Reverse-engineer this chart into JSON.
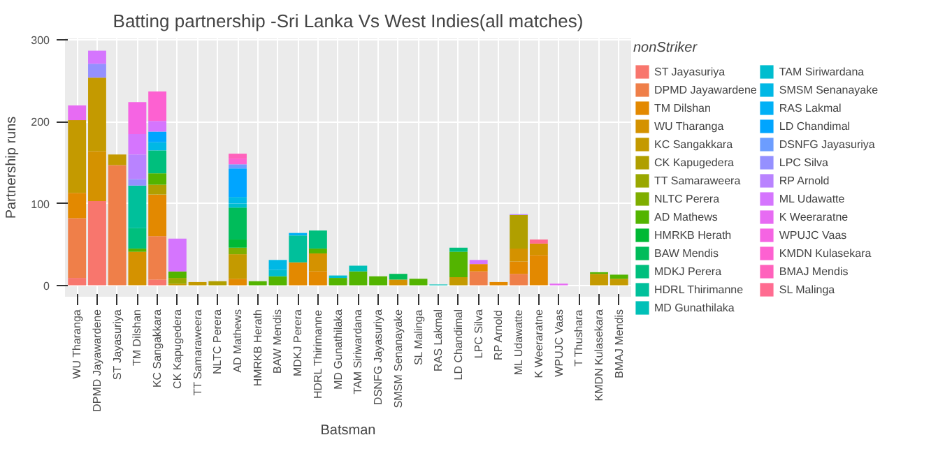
{
  "chart_data": {
    "type": "bar",
    "stacked": true,
    "title": "Batting partnership -Sri Lanka Vs West Indies(all matches)",
    "xlabel": "Batsman",
    "ylabel": "Partnership runs",
    "legend_title": "nonStriker",
    "legend": "right",
    "grid": true,
    "ylim": [
      -14,
      302
    ],
    "yticks": [
      0,
      100,
      200,
      300
    ],
    "categories": [
      "WU Tharanga",
      "DPMD Jayawardene",
      "ST Jayasuriya",
      "TM Dilshan",
      "KC Sangakkara",
      "CK Kapugedera",
      "TT Samaraweera",
      "NLTC Perera",
      "AD Mathews",
      "HMRKB Herath",
      "BAW Mendis",
      "MDKJ Perera",
      "HDRL Thirimanne",
      "MD Gunathilaka",
      "TAM Siriwardana",
      "DSNFG Jayasuriya",
      "SMSM Senanayake",
      "SL Malinga",
      "RAS Lakmal",
      "LD Chandimal",
      "LPC Silva",
      "RP Arnold",
      "ML Udawatte",
      "K Weeraratne",
      "WPUJC Vaas",
      "T Thushara",
      "KMDN Kulasekara",
      "BMAJ Mendis"
    ],
    "series": [
      {
        "name": "ST Jayasuriya",
        "color": "#f8766d",
        "values": [
          9,
          103,
          null,
          null,
          7,
          null,
          null,
          null,
          null,
          null,
          null,
          null,
          null,
          null,
          null,
          null,
          null,
          null,
          null,
          null,
          null,
          null,
          null,
          null,
          null,
          null,
          null,
          null
        ]
      },
      {
        "name": "DPMD Jayawardene",
        "color": "#ef7f49",
        "values": [
          73,
          null,
          147,
          null,
          53,
          null,
          null,
          null,
          null,
          null,
          null,
          null,
          null,
          null,
          null,
          null,
          null,
          null,
          null,
          null,
          17,
          null,
          14,
          null,
          null,
          null,
          null,
          null
        ]
      },
      {
        "name": "TM Dilshan",
        "color": "#e38900",
        "values": [
          31,
          null,
          null,
          null,
          51,
          null,
          null,
          null,
          8,
          null,
          null,
          28,
          17,
          null,
          null,
          null,
          null,
          null,
          null,
          null,
          9,
          4,
          15,
          37,
          null,
          null,
          null,
          null
        ]
      },
      {
        "name": "WU Tharanga",
        "color": "#d49200",
        "values": [
          null,
          61,
          null,
          41,
          null,
          null,
          null,
          null,
          null,
          null,
          null,
          null,
          22,
          null,
          null,
          null,
          7,
          null,
          null,
          null,
          null,
          null,
          16,
          14,
          null,
          null,
          null,
          null
        ]
      },
      {
        "name": "KC Sangakkara",
        "color": "#c49a00",
        "values": [
          89,
          90,
          13,
          null,
          null,
          2,
          4,
          null,
          30,
          null,
          null,
          null,
          null,
          null,
          null,
          null,
          null,
          null,
          null,
          10,
          null,
          null,
          null,
          null,
          null,
          null,
          14,
          8
        ]
      },
      {
        "name": "CK Kapugedera",
        "color": "#b09f00",
        "values": [
          null,
          null,
          null,
          null,
          12,
          null,
          null,
          5,
          null,
          null,
          null,
          null,
          null,
          null,
          null,
          null,
          null,
          null,
          null,
          null,
          null,
          null,
          41,
          null,
          null,
          null,
          null,
          null
        ]
      },
      {
        "name": "TT Samaraweera",
        "color": "#9aa800",
        "values": [
          null,
          null,
          null,
          null,
          null,
          7,
          null,
          null,
          null,
          null,
          null,
          null,
          null,
          null,
          null,
          null,
          null,
          null,
          null,
          null,
          null,
          null,
          null,
          null,
          null,
          null,
          null,
          null
        ]
      },
      {
        "name": "NLTC Perera",
        "color": "#7fae00",
        "values": [
          null,
          null,
          null,
          null,
          null,
          null,
          null,
          null,
          8,
          null,
          null,
          null,
          null,
          null,
          null,
          null,
          null,
          null,
          null,
          null,
          null,
          null,
          null,
          null,
          null,
          null,
          null,
          null
        ]
      },
      {
        "name": "AD Mathews",
        "color": "#53b400",
        "values": [
          null,
          null,
          null,
          4,
          14,
          8,
          null,
          null,
          null,
          5,
          11,
          null,
          6,
          9,
          17,
          11,
          null,
          8,
          null,
          31,
          null,
          null,
          null,
          null,
          null,
          null,
          2,
          5
        ]
      },
      {
        "name": "HMRKB Herath",
        "color": "#00b935",
        "values": [
          null,
          null,
          null,
          null,
          null,
          null,
          null,
          null,
          10,
          null,
          null,
          null,
          null,
          null,
          null,
          null,
          null,
          null,
          null,
          null,
          null,
          null,
          null,
          null,
          null,
          null,
          null,
          null
        ]
      },
      {
        "name": "BAW Mendis",
        "color": "#00bc5a",
        "values": [
          null,
          null,
          null,
          null,
          null,
          null,
          null,
          null,
          39,
          null,
          null,
          null,
          null,
          null,
          null,
          null,
          7,
          null,
          null,
          null,
          null,
          null,
          null,
          null,
          null,
          null,
          null,
          null
        ]
      },
      {
        "name": "MDKJ Perera",
        "color": "#00bf7d",
        "values": [
          null,
          null,
          null,
          25,
          28,
          null,
          null,
          null,
          null,
          null,
          null,
          null,
          22,
          null,
          null,
          null,
          null,
          null,
          null,
          5,
          null,
          null,
          null,
          null,
          null,
          null,
          null,
          null
        ]
      },
      {
        "name": "HDRL Thirimanne",
        "color": "#00c09b",
        "values": [
          null,
          null,
          null,
          52,
          null,
          null,
          null,
          null,
          null,
          null,
          null,
          33,
          null,
          null,
          null,
          null,
          null,
          null,
          null,
          null,
          null,
          null,
          null,
          null,
          null,
          null,
          null,
          null
        ]
      },
      {
        "name": "MD Gunathilaka",
        "color": "#00c0b7",
        "values": [
          null,
          null,
          null,
          null,
          null,
          null,
          null,
          null,
          null,
          null,
          null,
          null,
          null,
          null,
          7,
          null,
          null,
          null,
          1,
          null,
          null,
          null,
          null,
          null,
          null,
          null,
          null,
          null
        ]
      },
      {
        "name": "TAM Siriwardana",
        "color": "#00bdcf",
        "values": [
          null,
          null,
          null,
          null,
          null,
          null,
          null,
          null,
          5,
          null,
          8,
          null,
          null,
          3,
          null,
          null,
          null,
          null,
          null,
          null,
          null,
          null,
          null,
          null,
          null,
          null,
          null,
          null
        ]
      },
      {
        "name": "SMSM Senanayake",
        "color": "#00b8e5",
        "values": [
          null,
          null,
          null,
          null,
          10,
          null,
          null,
          null,
          8,
          null,
          12,
          null,
          null,
          null,
          null,
          null,
          null,
          null,
          null,
          null,
          null,
          null,
          null,
          null,
          null,
          null,
          null,
          null
        ]
      },
      {
        "name": "RAS Lakmal",
        "color": "#00b0f6",
        "values": [
          null,
          null,
          null,
          null,
          null,
          null,
          null,
          null,
          null,
          null,
          null,
          3,
          null,
          null,
          null,
          null,
          null,
          null,
          null,
          null,
          null,
          null,
          null,
          null,
          null,
          null,
          null,
          null
        ]
      },
      {
        "name": "LD Chandimal",
        "color": "#00a5ff",
        "values": [
          null,
          null,
          null,
          null,
          13,
          null,
          null,
          null,
          35,
          null,
          null,
          null,
          null,
          null,
          null,
          null,
          null,
          null,
          null,
          null,
          null,
          null,
          null,
          null,
          null,
          null,
          null,
          null
        ]
      },
      {
        "name": "DSNFG Jayasuriya",
        "color": "#6c9dff",
        "values": [
          null,
          null,
          null,
          null,
          null,
          null,
          null,
          null,
          5,
          null,
          null,
          null,
          null,
          null,
          null,
          null,
          null,
          null,
          null,
          null,
          null,
          null,
          null,
          null,
          null,
          null,
          null,
          null
        ]
      },
      {
        "name": "LPC Silva",
        "color": "#9590ff",
        "values": [
          null,
          17,
          null,
          8,
          null,
          null,
          null,
          null,
          null,
          null,
          null,
          null,
          null,
          null,
          null,
          null,
          null,
          null,
          null,
          null,
          null,
          null,
          null,
          null,
          null,
          null,
          null,
          null
        ]
      },
      {
        "name": "RP Arnold",
        "color": "#b983ff",
        "values": [
          null,
          null,
          null,
          30,
          null,
          null,
          null,
          null,
          null,
          null,
          null,
          null,
          null,
          null,
          null,
          null,
          null,
          null,
          null,
          null,
          null,
          null,
          1,
          null,
          null,
          null,
          null,
          null
        ]
      },
      {
        "name": "ML Udawatte",
        "color": "#d575fe",
        "values": [
          null,
          16,
          null,
          25,
          13,
          40,
          null,
          null,
          null,
          null,
          null,
          null,
          null,
          null,
          null,
          null,
          null,
          null,
          null,
          null,
          5,
          null,
          null,
          null,
          null,
          null,
          null,
          null
        ]
      },
      {
        "name": "K Weeraratne",
        "color": "#e76bf3",
        "values": [
          18,
          null,
          null,
          null,
          null,
          null,
          null,
          null,
          null,
          null,
          null,
          null,
          null,
          null,
          null,
          null,
          null,
          null,
          null,
          null,
          null,
          null,
          null,
          null,
          2,
          null,
          null,
          null
        ]
      },
      {
        "name": "WPUJC Vaas",
        "color": "#f564e3",
        "values": [
          null,
          null,
          null,
          39,
          null,
          null,
          null,
          null,
          null,
          null,
          null,
          null,
          null,
          null,
          null,
          null,
          null,
          null,
          null,
          null,
          null,
          null,
          null,
          null,
          null,
          null,
          null,
          null
        ]
      },
      {
        "name": "KMDN Kulasekara",
        "color": "#fd61d1",
        "values": [
          null,
          null,
          null,
          null,
          36,
          null,
          null,
          null,
          7,
          null,
          null,
          null,
          null,
          null,
          null,
          null,
          null,
          null,
          null,
          null,
          null,
          null,
          null,
          null,
          null,
          null,
          null,
          null
        ]
      },
      {
        "name": "BMAJ Mendis",
        "color": "#ff62bc",
        "values": [
          null,
          null,
          null,
          null,
          null,
          null,
          null,
          null,
          6,
          null,
          null,
          null,
          null,
          null,
          null,
          null,
          null,
          null,
          null,
          null,
          null,
          null,
          null,
          null,
          null,
          null,
          null,
          null
        ]
      },
      {
        "name": "SL Malinga",
        "color": "#ff6c91",
        "values": [
          null,
          null,
          null,
          null,
          null,
          null,
          null,
          null,
          null,
          null,
          null,
          null,
          null,
          null,
          null,
          null,
          null,
          null,
          null,
          null,
          null,
          null,
          null,
          5,
          null,
          null,
          null,
          null
        ]
      }
    ]
  }
}
